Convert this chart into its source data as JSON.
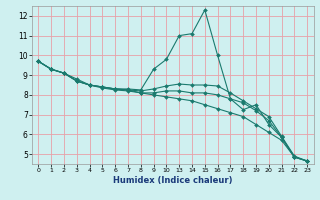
{
  "xlabel": "Humidex (Indice chaleur)",
  "ylabel": "",
  "bg_color": "#cff0f0",
  "grid_color": "#e8a0a8",
  "line_color": "#1a7a6e",
  "ylim": [
    4.5,
    12.5
  ],
  "yticks": [
    5,
    6,
    7,
    8,
    9,
    10,
    11,
    12
  ],
  "xlabels": [
    "0",
    "1",
    "2",
    "3",
    "4",
    "5",
    "6",
    "7",
    "8",
    "9",
    "10",
    "13",
    "14",
    "15",
    "16",
    "17",
    "18",
    "19",
    "20",
    "21",
    "22",
    "23"
  ],
  "series": [
    {
      "y": [
        9.7,
        9.3,
        9.1,
        8.8,
        8.5,
        8.4,
        8.3,
        8.3,
        8.25,
        9.3,
        9.8,
        11.0,
        11.1,
        12.3,
        10.0,
        7.8,
        7.25,
        7.5,
        6.5,
        5.85,
        4.85,
        4.65
      ]
    },
    {
      "y": [
        9.7,
        9.3,
        9.1,
        8.7,
        8.5,
        8.4,
        8.3,
        8.25,
        8.2,
        8.3,
        8.45,
        8.55,
        8.5,
        8.5,
        8.45,
        8.1,
        7.7,
        7.3,
        6.9,
        5.9,
        4.9,
        4.65
      ]
    },
    {
      "y": [
        9.7,
        9.3,
        9.1,
        8.7,
        8.5,
        8.4,
        8.3,
        8.25,
        8.1,
        8.1,
        8.2,
        8.2,
        8.1,
        8.1,
        8.0,
        7.8,
        7.6,
        7.2,
        6.7,
        5.85,
        4.85,
        4.65
      ]
    },
    {
      "y": [
        9.7,
        9.3,
        9.1,
        8.7,
        8.5,
        8.35,
        8.25,
        8.2,
        8.1,
        8.0,
        7.9,
        7.8,
        7.7,
        7.5,
        7.3,
        7.1,
        6.9,
        6.5,
        6.1,
        5.7,
        4.85,
        4.65
      ]
    }
  ]
}
